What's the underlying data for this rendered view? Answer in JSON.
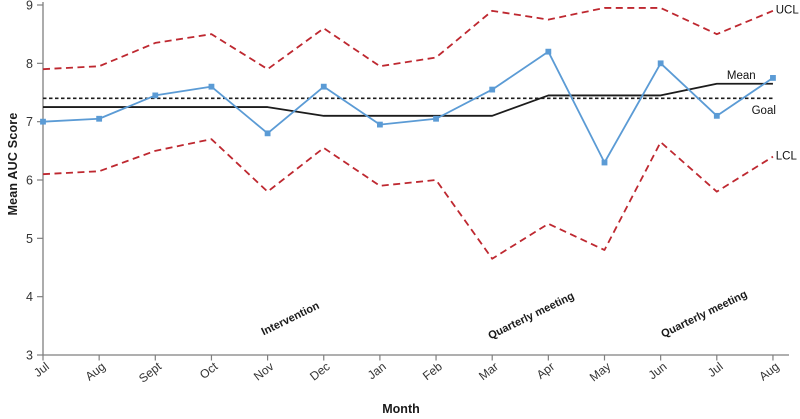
{
  "chart_data": {
    "type": "line",
    "title": "",
    "xlabel": "Month",
    "ylabel": "Mean AUC Score",
    "categories": [
      "Jul",
      "Aug",
      "Sept",
      "Oct",
      "Nov",
      "Dec",
      "Jan",
      "Feb",
      "Mar",
      "Apr",
      "May",
      "Jun",
      "Jul",
      "Aug"
    ],
    "ylim": [
      3,
      9
    ],
    "yticks": [
      3,
      4,
      5,
      6,
      7,
      8,
      9
    ],
    "grid": false,
    "legend_position": "line-end-labels",
    "colors": {
      "series_blue": "#5b9bd5",
      "control_red": "#be2830",
      "line_black": "#1c1c1c",
      "axis_gray": "#7f7f7f",
      "tick_text": "#333333"
    },
    "series": [
      {
        "name": "UCL",
        "color": "#be2830",
        "dash": "7 4.5",
        "width": 1.8,
        "markers": false,
        "values": [
          7.9,
          7.95,
          8.35,
          8.5,
          7.9,
          8.6,
          7.95,
          8.1,
          8.9,
          8.75,
          8.95,
          8.95,
          8.5,
          8.9
        ]
      },
      {
        "name": "LCL",
        "color": "#be2830",
        "dash": "7 4.5",
        "width": 1.8,
        "markers": false,
        "values": [
          6.1,
          6.15,
          6.5,
          6.7,
          5.8,
          6.55,
          5.9,
          6.0,
          4.65,
          5.25,
          4.8,
          6.65,
          5.8,
          6.4
        ]
      },
      {
        "name": "Goal",
        "color": "#1c1c1c",
        "dash": "3.5 2.5",
        "width": 1.6,
        "markers": false,
        "values": [
          7.4,
          7.4,
          7.4,
          7.4,
          7.4,
          7.4,
          7.4,
          7.4,
          7.4,
          7.4,
          7.4,
          7.4,
          7.4,
          7.4
        ]
      },
      {
        "name": "Mean",
        "color": "#1c1c1c",
        "dash": "",
        "width": 1.8,
        "markers": false,
        "values": [
          7.25,
          7.25,
          7.25,
          7.25,
          7.25,
          7.1,
          7.1,
          7.1,
          7.1,
          7.45,
          7.45,
          7.45,
          7.65,
          7.65
        ]
      },
      {
        "name": "Mean AUC",
        "color": "#5b9bd5",
        "dash": "",
        "width": 1.8,
        "markers": true,
        "values": [
          7.0,
          7.05,
          7.45,
          7.6,
          6.8,
          7.6,
          6.95,
          7.05,
          7.55,
          8.2,
          6.3,
          8.0,
          7.1,
          7.75
        ]
      }
    ],
    "line_end_labels": [
      {
        "text": "UCL",
        "xi": 13.05,
        "v": 8.92
      },
      {
        "text": "Mean",
        "xi": 12.18,
        "v": 7.8
      },
      {
        "text": "Goal",
        "xi": 12.62,
        "v": 7.2
      },
      {
        "text": "LCL",
        "xi": 13.05,
        "v": 6.42
      }
    ],
    "annotations": [
      {
        "text": "Intervention",
        "xi": 4.43,
        "v": 3.57,
        "rotate": -26
      },
      {
        "text": "Quarterly meeting",
        "xi": 8.72,
        "v": 3.62,
        "rotate": -26
      },
      {
        "text": "Quarterly meeting",
        "xi": 11.8,
        "v": 3.65,
        "rotate": -26
      }
    ]
  }
}
